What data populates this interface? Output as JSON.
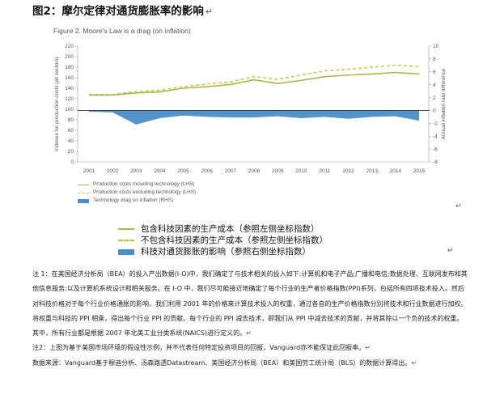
{
  "page": {
    "title": "图2：摩尔定律对通货膨胀率的影响",
    "return_mark": "↵",
    "figure_caption": "Figure 2. Moore's Law is a drag (on inflation)"
  },
  "chart_data": {
    "type": "line",
    "title": "Figure 2. Moore's Law is a drag (on inflation)",
    "xlabel": "",
    "ylabel_left": "Indexes for production costs (all sectors)",
    "ylabel_right": "Annual inflation rate difference",
    "x": [
      "2001",
      "2002",
      "2003",
      "2004",
      "2005",
      "2006",
      "2007",
      "2008",
      "2009",
      "2010",
      "2011",
      "2012",
      "2013",
      "2014",
      "2015"
    ],
    "ylim_left": [
      0,
      220
    ],
    "yticks_left": [
      0,
      20,
      40,
      60,
      80,
      100,
      120,
      140,
      160,
      180,
      200,
      220
    ],
    "ylim_right": [
      -8,
      10
    ],
    "yticks_right": [
      -8,
      -6,
      -4,
      -2,
      0,
      2,
      4,
      6,
      8,
      10
    ],
    "grid": false,
    "series": [
      {
        "name": "Production costs including technology (LHS)",
        "axis": "left",
        "style": "solid",
        "color": "#a8b84a",
        "values": [
          127,
          127,
          131,
          133,
          140,
          143,
          147,
          156,
          149,
          155,
          162,
          165,
          167,
          170,
          167
        ]
      },
      {
        "name": "Production costs excluding technology (LHS)",
        "axis": "left",
        "style": "dashed",
        "color": "#c7cf3c",
        "values": [
          128,
          128,
          134,
          136,
          143,
          148,
          152,
          162,
          157,
          165,
          173,
          176,
          180,
          184,
          181
        ]
      },
      {
        "name": "Technology drag on inflation (RHS)",
        "axis": "right",
        "style": "area",
        "color": "#4a8fc7",
        "values": [
          -0.2,
          -0.3,
          -2.2,
          -1.2,
          -0.8,
          -1.0,
          -1.1,
          -1.1,
          -0.9,
          -1.2,
          -1.0,
          -1.3,
          -1.0,
          -0.9,
          -1.6
        ]
      }
    ]
  },
  "legend_cn": [
    "包含科技因素的生产成本（参照左侧坐标指数）",
    "不包含科技因素的生产成本（参照左侧坐标指数）",
    "科技对通货膨胀的影响（参照右侧坐标指数）"
  ],
  "notes": {
    "note1": "注 1：在美国经济分析局（BEA）的投入产出数据(I-O)中，我们确定了与技术相关的投入如下:计算机和电子产品;广播和电信;数据处理、互联网发布和其他信息服务;以及计算机系统设计和相关服务。在 I-O 中，我们尽可能接近地确定了每个行业的生产者价格指数(PPI)系列，包括所有四项技术投入。然后对科技价格对于每个行业价格通胀的影响，我们利用 2001 年的价格来计算技术投入的权重，通过各自的生产价格指数分别将技术和行业数据进行加权。将权重与科技的 PPI 相乘，得出每个行业 PPI 的贡献。每个行业的 PPI 减去技术，即我们从 PPI 中减去技术的贡献，并将其除以一个负的技术的权重。其中，所有行业都是根据 2007 年北美工业分类系统(NAICS)进行定义的。",
    "note2": "注2：上图为基于美国市场环境的假设性示例，并不代表任何特定投资项目的回报，Vanguard亦不能保证此回报率。",
    "source": "数据来源：Vanguard基于穆迪分析、汤森路透Datastream、美国经济分析局（BEA）和美国劳工统计局（BLS）的数据计算得出。"
  }
}
